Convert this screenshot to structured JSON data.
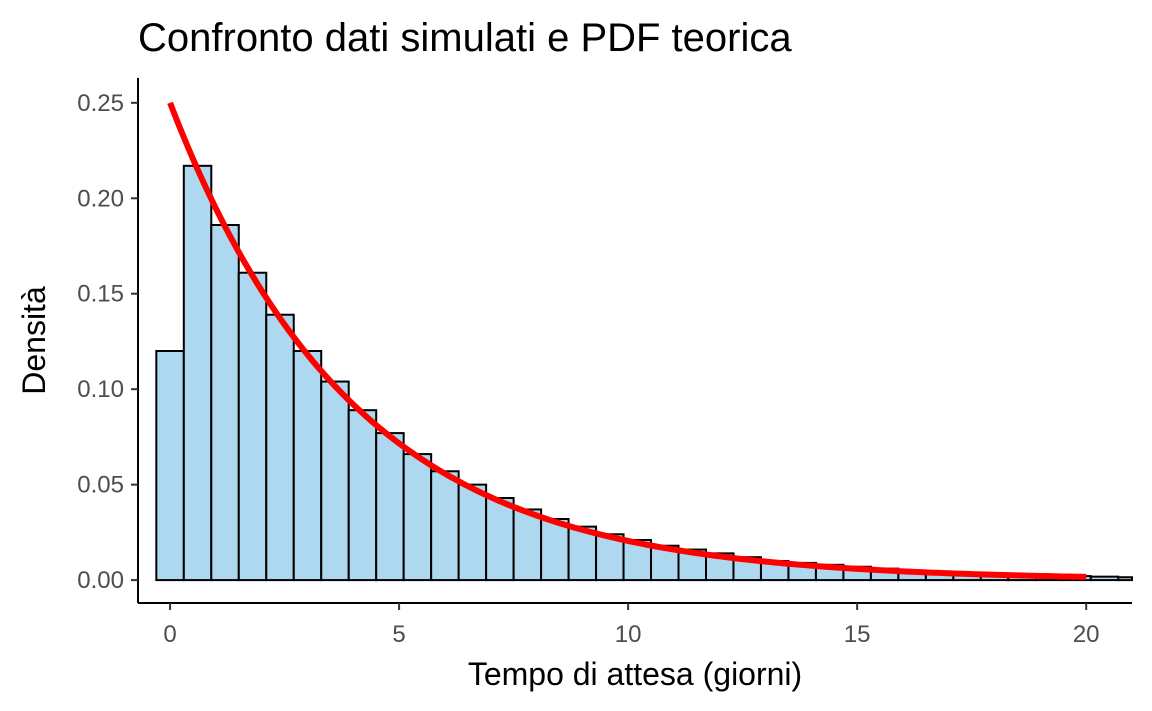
{
  "chart_data": {
    "type": "histogram",
    "title": "Confronto dati simulati e PDF teorica",
    "xlabel": "Tempo di attesa (giorni)",
    "ylabel": "Densità",
    "xlim": [
      -0.7,
      21
    ],
    "ylim": [
      -0.012,
      0.263
    ],
    "x_ticks": [
      0,
      5,
      10,
      15,
      20
    ],
    "x_tick_labels": [
      "0",
      "5",
      "10",
      "15",
      "20"
    ],
    "y_ticks": [
      0,
      0.05,
      0.1,
      0.15,
      0.2,
      0.25
    ],
    "y_tick_labels": [
      "0.00",
      "0.05",
      "0.10",
      "0.15",
      "0.20",
      "0.25"
    ],
    "grid": false,
    "legend": "none",
    "histogram": {
      "bin_start": -0.3,
      "bin_width": 0.6,
      "values": [
        0.12,
        0.217,
        0.186,
        0.161,
        0.139,
        0.12,
        0.104,
        0.089,
        0.077,
        0.066,
        0.057,
        0.05,
        0.043,
        0.037,
        0.032,
        0.028,
        0.024,
        0.021,
        0.018,
        0.016,
        0.014,
        0.012,
        0.01,
        0.009,
        0.008,
        0.007,
        0.006,
        0.005,
        0.004,
        0.0037,
        0.0032,
        0.0028,
        0.0024,
        0.0021,
        0.0018,
        0.0015
      ],
      "fill_color": "#add8ef",
      "edge_color": "#000000"
    },
    "theoretical_pdf": {
      "distribution": "exponential",
      "rate": 0.25,
      "x_range": [
        0,
        20
      ],
      "color": "#ff0000"
    }
  }
}
